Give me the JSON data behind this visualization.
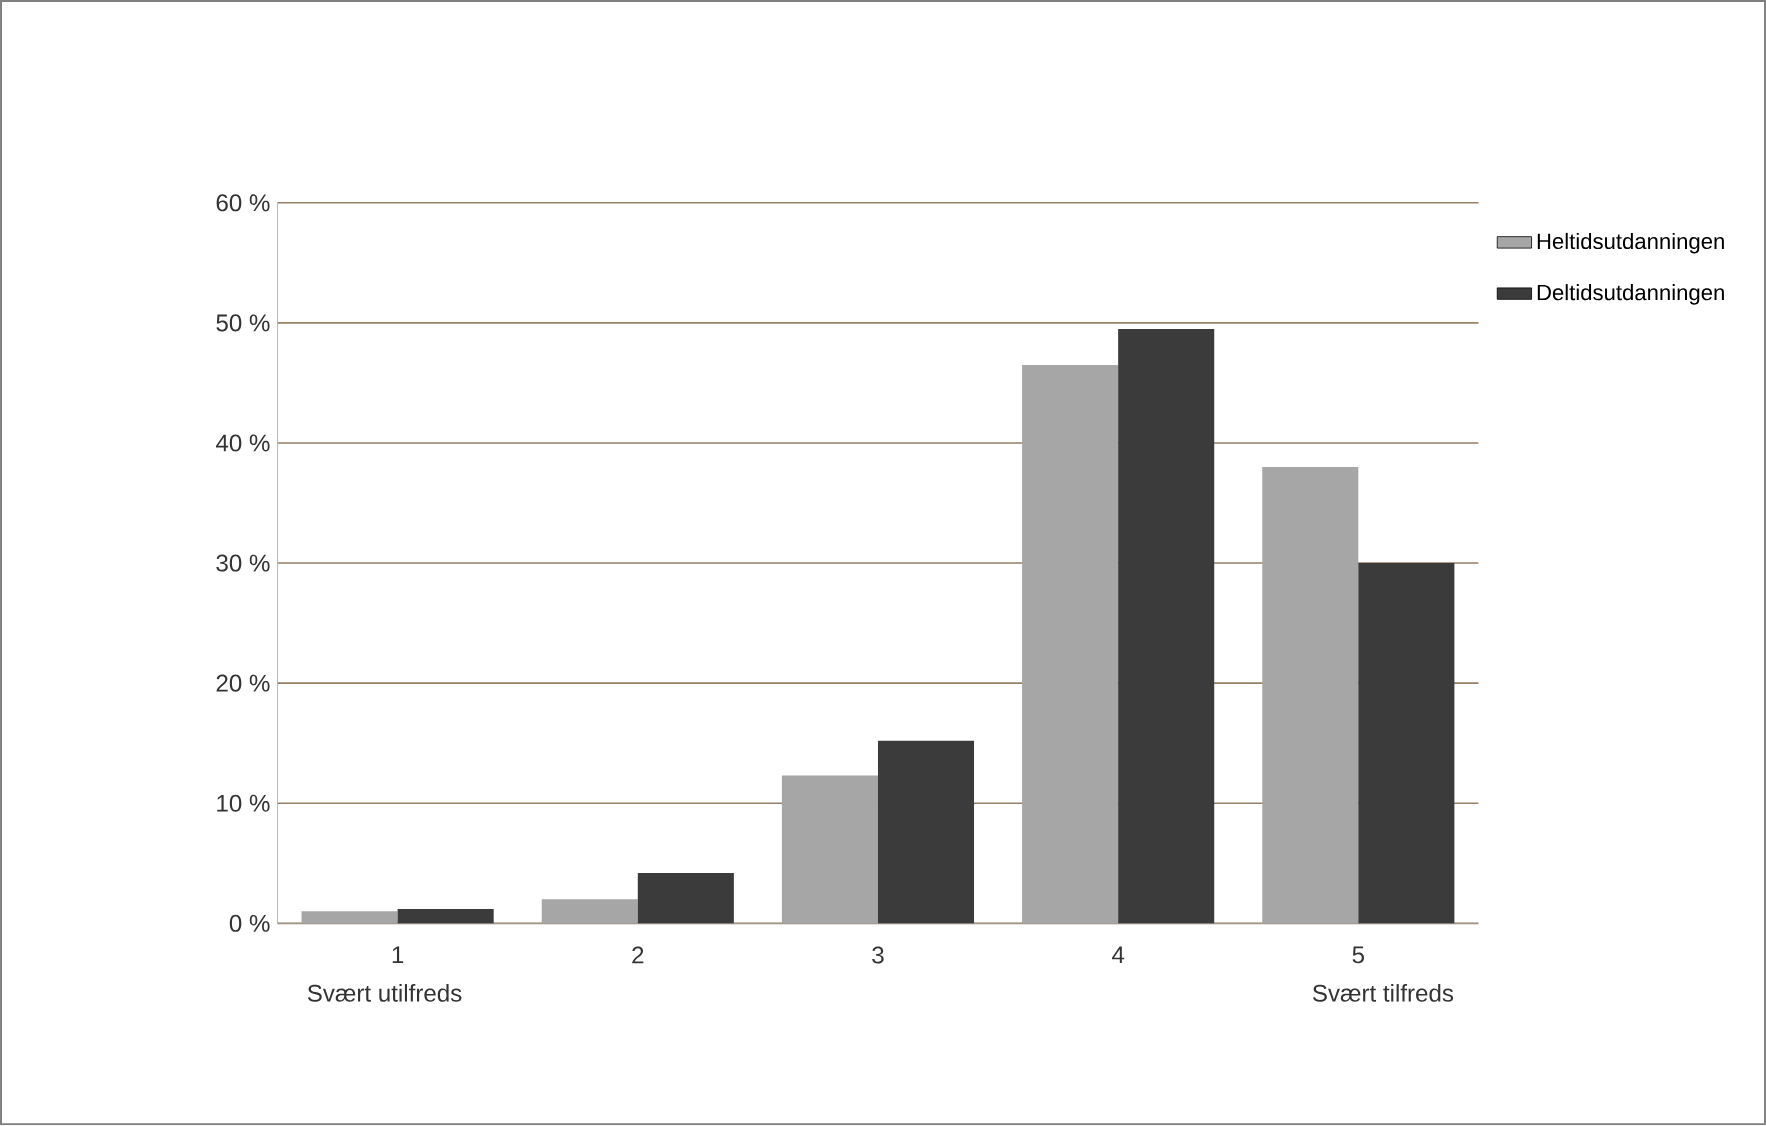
{
  "chart_data": {
    "type": "bar",
    "categories": [
      "1",
      "2",
      "3",
      "4",
      "5"
    ],
    "series": [
      {
        "name": "Heltidsutdanningen",
        "color": "#a6a6a6",
        "values": [
          1.0,
          2.0,
          12.3,
          46.5,
          38.0
        ]
      },
      {
        "name": "Deltidsutdanningen",
        "color": "#3b3b3b",
        "values": [
          1.2,
          4.2,
          15.2,
          49.5,
          30.0
        ]
      }
    ],
    "ylim": [
      0,
      60
    ],
    "yticks": [
      {
        "value": 0,
        "label": "0 %"
      },
      {
        "value": 10,
        "label": "10 %"
      },
      {
        "value": 20,
        "label": "20 %"
      },
      {
        "value": 30,
        "label": "30 %"
      },
      {
        "value": 40,
        "label": "40 %"
      },
      {
        "value": 50,
        "label": "50 %"
      },
      {
        "value": 60,
        "label": "60 %"
      }
    ],
    "annotations": [
      "Svært utilfreds",
      "Svært tilfreds"
    ],
    "grid": "y",
    "legend": "top right"
  }
}
